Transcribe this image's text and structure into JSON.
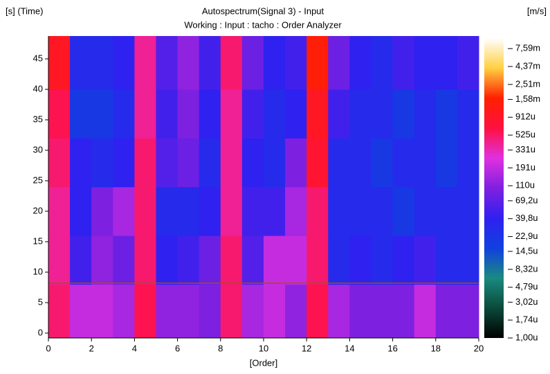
{
  "chart_data": {
    "type": "heatmap",
    "title": "Autospectrum(Signal 3) - Input",
    "subtitle": "Working : Input : tacho : Order Analyzer",
    "y_label": "[s] (Time)",
    "x_label": "[Order]",
    "colorbar_label": "[m/s]",
    "xlim": [
      0,
      20
    ],
    "xticks": [
      0,
      2,
      4,
      6,
      8,
      10,
      12,
      14,
      16,
      18,
      20
    ],
    "ylim": [
      -0.8,
      48.75
    ],
    "yticks": [
      0,
      5,
      10,
      15,
      20,
      25,
      30,
      35,
      40,
      45
    ],
    "x_bins": [
      0,
      1,
      2,
      3,
      4,
      5,
      6,
      7,
      8,
      9,
      10,
      11,
      12,
      13,
      14,
      15,
      16,
      17,
      18,
      19,
      20
    ],
    "y_bins": [
      -0.8,
      8,
      16,
      24,
      32,
      40,
      48.75
    ],
    "matrix": [
      [
        0.0005,
        0.0002,
        0.0002,
        0.00015,
        0.0006,
        0.00012,
        0.00012,
        0.0001,
        0.0005,
        0.00015,
        0.0002,
        0.00012,
        0.0006,
        0.00015,
        0.0001,
        0.0001,
        0.0001,
        0.0002,
        0.0001,
        0.0001
      ],
      [
        0.0004,
        5e-05,
        0.00012,
        8e-05,
        0.0005,
        4e-05,
        5e-05,
        8e-05,
        0.0005,
        6e-05,
        0.0002,
        0.0002,
        0.0005,
        3e-05,
        4e-05,
        3e-05,
        4e-05,
        5e-05,
        3e-05,
        3e-05
      ],
      [
        0.0004,
        4e-05,
        0.0001,
        0.00015,
        0.0005,
        3e-05,
        3e-05,
        4e-05,
        0.0004,
        5e-05,
        5e-05,
        0.00015,
        0.0005,
        3e-05,
        3e-05,
        3e-05,
        2e-05,
        3e-05,
        3e-05,
        3e-05
      ],
      [
        0.0005,
        4e-05,
        3e-05,
        4e-05,
        0.0005,
        6e-05,
        8e-05,
        3e-05,
        0.0004,
        4e-05,
        3e-05,
        0.0001,
        0.0008,
        3e-05,
        3e-05,
        2e-05,
        3e-05,
        3e-05,
        2e-05,
        3e-05
      ],
      [
        0.0006,
        2e-05,
        2e-05,
        3e-05,
        0.0004,
        5e-05,
        0.0001,
        4e-05,
        0.0004,
        5e-05,
        3e-05,
        4e-05,
        0.001,
        5e-05,
        3e-05,
        3e-05,
        2e-05,
        3e-05,
        2e-05,
        3e-05
      ],
      [
        0.001,
        3e-05,
        3e-05,
        4e-05,
        0.0004,
        6e-05,
        0.00012,
        5e-05,
        0.0005,
        8e-05,
        4e-05,
        5e-05,
        0.0015,
        8e-05,
        4e-05,
        3e-05,
        5e-05,
        4e-05,
        4e-05,
        5e-05
      ]
    ],
    "cursor_y": 8.2,
    "cursor_color": "#a05020",
    "clim": [
      1e-06,
      0.0105
    ],
    "colormap": [
      "#000000",
      "#0a4a3a",
      "#1a8a80",
      "#1040e0",
      "#3020f0",
      "#8020e0",
      "#e030e0",
      "#ff1040",
      "#ff2000",
      "#ffd040",
      "#ffffff"
    ],
    "cticks": [
      {
        "value": 0.00759,
        "label": "7,59m"
      },
      {
        "value": 0.00437,
        "label": "4,37m"
      },
      {
        "value": 0.00251,
        "label": "2,51m"
      },
      {
        "value": 0.00158,
        "label": "1,58m"
      },
      {
        "value": 0.000912,
        "label": "912u"
      },
      {
        "value": 0.000525,
        "label": "525u"
      },
      {
        "value": 0.000331,
        "label": "331u"
      },
      {
        "value": 0.000191,
        "label": "191u"
      },
      {
        "value": 0.00011,
        "label": "110u"
      },
      {
        "value": 6.92e-05,
        "label": "69,2u"
      },
      {
        "value": 3.98e-05,
        "label": "39,8u"
      },
      {
        "value": 2.29e-05,
        "label": "22,9u"
      },
      {
        "value": 1.45e-05,
        "label": "14,5u"
      },
      {
        "value": 8.32e-06,
        "label": "8,32u"
      },
      {
        "value": 4.79e-06,
        "label": "4,79u"
      },
      {
        "value": 3.02e-06,
        "label": "3,02u"
      },
      {
        "value": 1.74e-06,
        "label": "1,74u"
      },
      {
        "value": 1e-06,
        "label": "1,00u"
      }
    ]
  }
}
